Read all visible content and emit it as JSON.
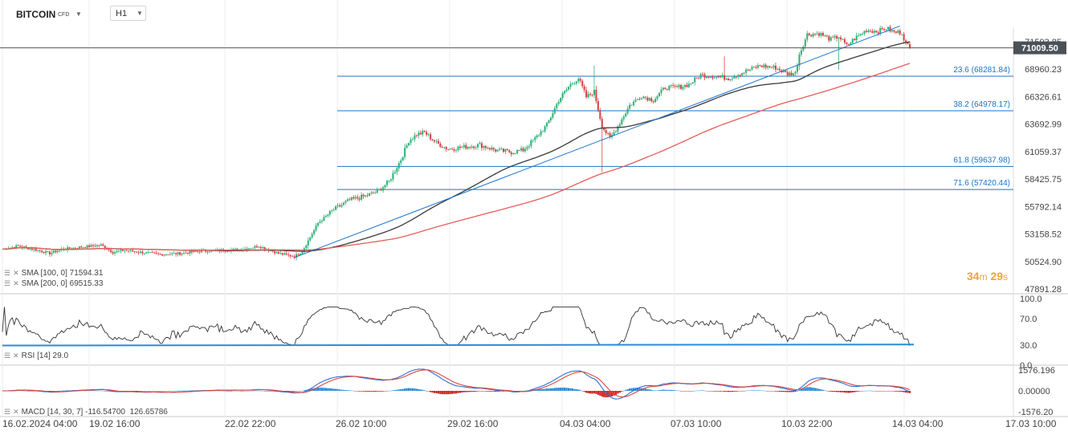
{
  "toolbar": {
    "symbol": "BITCOIN",
    "symbol_type": "CFD",
    "timeframe": "H1"
  },
  "indicators": {
    "sma100": {
      "label": "SMA",
      "params": "[100, 0]",
      "value": "71594.31",
      "color": "#3a3a3a"
    },
    "sma200": {
      "label": "SMA",
      "params": "[200, 0]",
      "value": "69515.33",
      "color": "#e15f5a"
    },
    "rsi": {
      "label": "RSI",
      "params": "[14]",
      "value": "29.0"
    },
    "macd": {
      "label": "MACD",
      "params": "[14, 30, 7]",
      "value1": "-116.54700",
      "value2": "126.65786"
    }
  },
  "countdown": {
    "minutes": "34",
    "m": "m",
    "seconds": "29",
    "s": "s"
  },
  "colors": {
    "up": "#2eb276",
    "down": "#d64541",
    "fib": "#1a73c8",
    "rsi_line": "#2a8bd8"
  },
  "chart_data": {
    "type": "candlestick",
    "symbol": "BITCOIN",
    "timeframe": "H1",
    "current_price": "71009.50",
    "price_ticks": [
      "71593.85",
      "68960.23",
      "66326.61",
      "63692.99",
      "61059.37",
      "58425.75",
      "55792.14",
      "53158.52",
      "50524.90",
      "47891.28"
    ],
    "x_ticks": [
      "16.02.2024  04:00",
      "19.02  16:00",
      "22.02  22:00",
      "26.02  10:00",
      "29.02  16:00",
      "04.03  04:00",
      "07.03  10:00",
      "10.03  22:00",
      "14.03  04:00",
      "17.03  10:00"
    ],
    "fib_levels": [
      {
        "label": "23.6 (68281.84)",
        "price": 68281.84
      },
      {
        "label": "38.2 (64978.17)",
        "price": 64978.17
      },
      {
        "label": "61.8 (59637.98)",
        "price": 59637.98
      },
      {
        "label": "71.6 (57420.44)",
        "price": 57420.44
      }
    ],
    "price_keypoints": [
      [
        0,
        51700
      ],
      [
        8,
        52000
      ],
      [
        18,
        51600
      ],
      [
        24,
        51300
      ],
      [
        30,
        51700
      ],
      [
        40,
        51900
      ],
      [
        50,
        52100
      ],
      [
        56,
        51400
      ],
      [
        62,
        51600
      ],
      [
        70,
        51400
      ],
      [
        80,
        51200
      ],
      [
        90,
        51300
      ],
      [
        100,
        51500
      ],
      [
        110,
        51600
      ],
      [
        122,
        51700
      ],
      [
        130,
        52000
      ],
      [
        140,
        51300
      ],
      [
        148,
        51000
      ],
      [
        152,
        51500
      ],
      [
        160,
        54200
      ],
      [
        168,
        55500
      ],
      [
        176,
        56400
      ],
      [
        184,
        56800
      ],
      [
        190,
        57200
      ],
      [
        196,
        58200
      ],
      [
        202,
        60300
      ],
      [
        206,
        62100
      ],
      [
        210,
        62700
      ],
      [
        214,
        62900
      ],
      [
        220,
        61900
      ],
      [
        226,
        61300
      ],
      [
        234,
        61500
      ],
      [
        242,
        61700
      ],
      [
        250,
        61200
      ],
      [
        258,
        61000
      ],
      [
        264,
        61200
      ],
      [
        270,
        62300
      ],
      [
        276,
        63600
      ],
      [
        282,
        66000
      ],
      [
        288,
        67500
      ],
      [
        292,
        68100
      ],
      [
        296,
        66300
      ],
      [
        300,
        66800
      ],
      [
        304,
        63500
      ],
      [
        308,
        62300
      ],
      [
        312,
        63500
      ],
      [
        318,
        65500
      ],
      [
        324,
        66400
      ],
      [
        330,
        66000
      ],
      [
        336,
        67200
      ],
      [
        342,
        67200
      ],
      [
        348,
        67500
      ],
      [
        354,
        68400
      ],
      [
        360,
        68300
      ],
      [
        368,
        68100
      ],
      [
        376,
        68700
      ],
      [
        384,
        69300
      ],
      [
        392,
        69100
      ],
      [
        398,
        68500
      ],
      [
        402,
        68600
      ],
      [
        404,
        70400
      ],
      [
        408,
        72300
      ],
      [
        414,
        72400
      ],
      [
        420,
        71800
      ],
      [
        424,
        72100
      ],
      [
        428,
        71200
      ],
      [
        432,
        71900
      ],
      [
        438,
        72700
      ],
      [
        444,
        72600
      ],
      [
        448,
        72900
      ],
      [
        452,
        72500
      ],
      [
        456,
        72500
      ],
      [
        458,
        71400
      ],
      [
        460,
        71000
      ]
    ],
    "sma100_last": 71594.31,
    "sma200_last": 69515.33,
    "rsi": {
      "ticks": [
        "100.0",
        "70.0",
        "30.0",
        "0.0"
      ],
      "last": 29.0
    },
    "macd": {
      "ticks": [
        "1576.196",
        "0.00000",
        "-1576.20"
      ],
      "params": [
        14,
        30,
        7
      ]
    }
  }
}
